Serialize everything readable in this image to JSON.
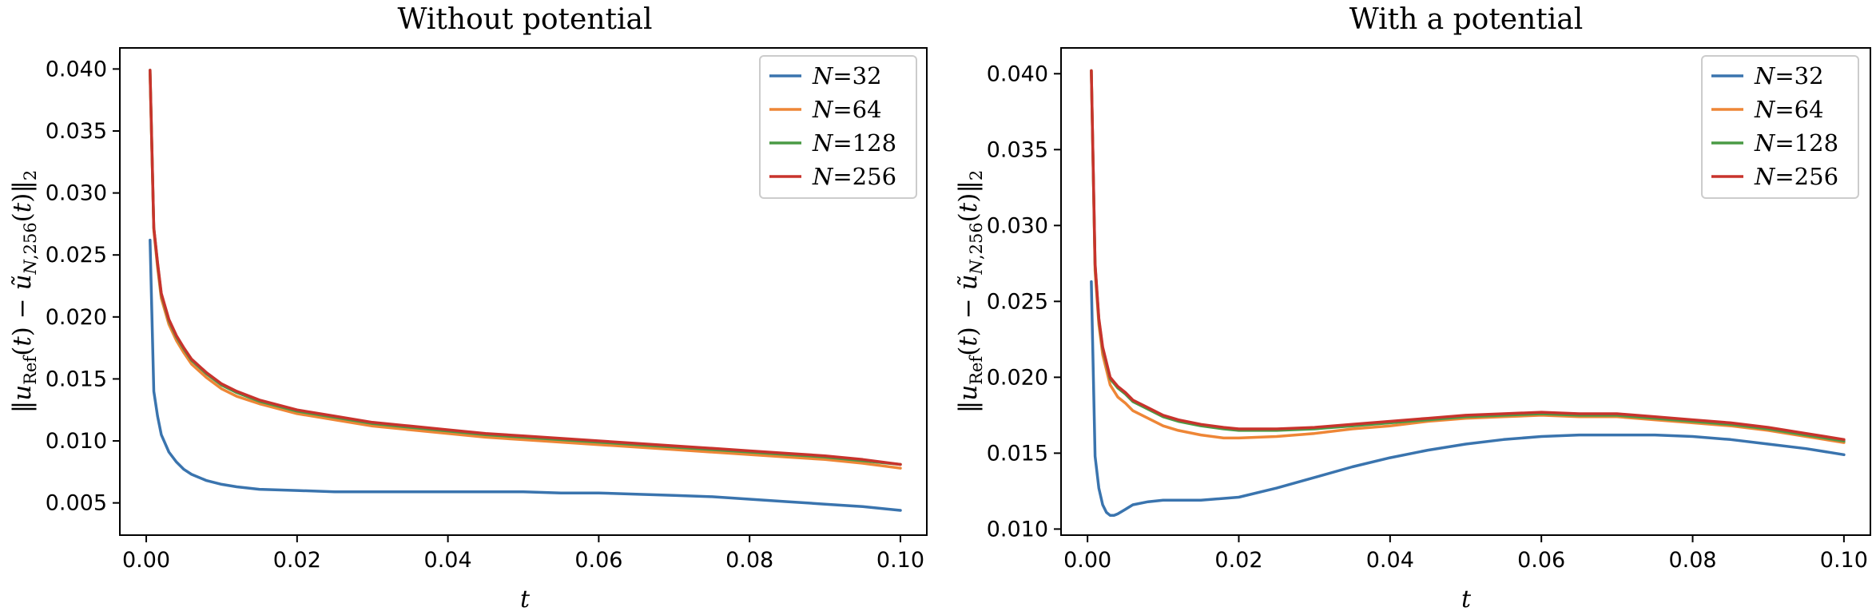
{
  "chart_data": [
    {
      "type": "line",
      "title": "Without potential",
      "xlabel": "t",
      "ylabel": "‖u_Ref(t) − ũ_N,256(t)‖_2",
      "xlim": [
        -0.0035,
        0.1035
      ],
      "ylim": [
        0.0024,
        0.0417
      ],
      "xticks": [
        "0.00",
        "0.02",
        "0.04",
        "0.06",
        "0.08",
        "0.10"
      ],
      "yticks": [
        "0.005",
        "0.010",
        "0.015",
        "0.020",
        "0.025",
        "0.030",
        "0.035",
        "0.040"
      ],
      "legend_position": "top-right",
      "series": [
        {
          "name": "N = 32",
          "color": "#3a74ae",
          "x": [
            0.0005,
            0.001,
            0.0015,
            0.002,
            0.003,
            0.004,
            0.005,
            0.006,
            0.008,
            0.01,
            0.012,
            0.015,
            0.02,
            0.025,
            0.03,
            0.035,
            0.04,
            0.045,
            0.05,
            0.055,
            0.06,
            0.065,
            0.07,
            0.075,
            0.08,
            0.085,
            0.09,
            0.095,
            0.1
          ],
          "values": [
            0.0262,
            0.014,
            0.012,
            0.0105,
            0.0091,
            0.0083,
            0.0077,
            0.0073,
            0.0068,
            0.0065,
            0.0063,
            0.0061,
            0.006,
            0.0059,
            0.0059,
            0.0059,
            0.0059,
            0.0059,
            0.0059,
            0.0058,
            0.0058,
            0.0057,
            0.0056,
            0.0055,
            0.0053,
            0.0051,
            0.0049,
            0.0047,
            0.0044
          ]
        },
        {
          "name": "N = 64",
          "color": "#ee8636",
          "x": [
            0.0005,
            0.001,
            0.0015,
            0.002,
            0.003,
            0.004,
            0.005,
            0.006,
            0.008,
            0.01,
            0.012,
            0.015,
            0.02,
            0.025,
            0.03,
            0.035,
            0.04,
            0.045,
            0.05,
            0.055,
            0.06,
            0.065,
            0.07,
            0.075,
            0.08,
            0.085,
            0.09,
            0.095,
            0.1
          ],
          "values": [
            0.0396,
            0.027,
            0.024,
            0.0215,
            0.0194,
            0.0181,
            0.0171,
            0.0162,
            0.0151,
            0.0142,
            0.0136,
            0.013,
            0.0122,
            0.0117,
            0.0112,
            0.0109,
            0.0106,
            0.0103,
            0.0101,
            0.0099,
            0.0097,
            0.0095,
            0.0093,
            0.0091,
            0.0089,
            0.0087,
            0.0085,
            0.0082,
            0.0078
          ]
        },
        {
          "name": "N = 128",
          "color": "#4a9a45",
          "x": [
            0.0005,
            0.001,
            0.0015,
            0.002,
            0.003,
            0.004,
            0.005,
            0.006,
            0.008,
            0.01,
            0.012,
            0.015,
            0.02,
            0.025,
            0.03,
            0.035,
            0.04,
            0.045,
            0.05,
            0.055,
            0.06,
            0.065,
            0.07,
            0.075,
            0.08,
            0.085,
            0.09,
            0.095,
            0.1
          ],
          "values": [
            0.0399,
            0.0272,
            0.0243,
            0.0218,
            0.0197,
            0.0184,
            0.0174,
            0.0165,
            0.0154,
            0.0145,
            0.0139,
            0.0132,
            0.0124,
            0.0119,
            0.0114,
            0.0111,
            0.0108,
            0.0105,
            0.0103,
            0.0101,
            0.0099,
            0.0097,
            0.0095,
            0.0093,
            0.0091,
            0.0089,
            0.0087,
            0.0084,
            0.0081
          ]
        },
        {
          "name": "N = 256",
          "color": "#c8332c",
          "x": [
            0.0005,
            0.001,
            0.0015,
            0.002,
            0.003,
            0.004,
            0.005,
            0.006,
            0.008,
            0.01,
            0.012,
            0.015,
            0.02,
            0.025,
            0.03,
            0.035,
            0.04,
            0.045,
            0.05,
            0.055,
            0.06,
            0.065,
            0.07,
            0.075,
            0.08,
            0.085,
            0.09,
            0.095,
            0.1
          ],
          "values": [
            0.0399,
            0.0272,
            0.0244,
            0.0219,
            0.0198,
            0.0185,
            0.0175,
            0.0166,
            0.0155,
            0.0146,
            0.014,
            0.0133,
            0.0125,
            0.012,
            0.0115,
            0.0112,
            0.0109,
            0.0106,
            0.0104,
            0.0102,
            0.01,
            0.0098,
            0.0096,
            0.0094,
            0.0092,
            0.009,
            0.0088,
            0.0085,
            0.0081
          ]
        }
      ]
    },
    {
      "type": "line",
      "title": "With a potential",
      "xlabel": "t",
      "ylabel": "‖u_Ref(t) − ũ_N,256(t)‖_2",
      "xlim": [
        -0.0035,
        0.1035
      ],
      "ylim": [
        0.0096,
        0.0417
      ],
      "xticks": [
        "0.00",
        "0.02",
        "0.04",
        "0.06",
        "0.08",
        "0.10"
      ],
      "yticks": [
        "0.010",
        "0.015",
        "0.020",
        "0.025",
        "0.030",
        "0.035",
        "0.040"
      ],
      "legend_position": "top-right",
      "series": [
        {
          "name": "N = 32",
          "color": "#3a74ae",
          "x": [
            0.0005,
            0.001,
            0.0015,
            0.002,
            0.0025,
            0.003,
            0.0035,
            0.004,
            0.005,
            0.006,
            0.008,
            0.01,
            0.015,
            0.02,
            0.025,
            0.03,
            0.035,
            0.04,
            0.045,
            0.05,
            0.055,
            0.06,
            0.065,
            0.07,
            0.075,
            0.08,
            0.085,
            0.09,
            0.095,
            0.1
          ],
          "values": [
            0.0263,
            0.0148,
            0.0127,
            0.0116,
            0.0111,
            0.0109,
            0.0109,
            0.011,
            0.0113,
            0.0116,
            0.0118,
            0.0119,
            0.0119,
            0.0121,
            0.0127,
            0.0134,
            0.0141,
            0.0147,
            0.0152,
            0.0156,
            0.0159,
            0.0161,
            0.0162,
            0.0162,
            0.0162,
            0.0161,
            0.0159,
            0.0156,
            0.0153,
            0.0149
          ]
        },
        {
          "name": "N = 64",
          "color": "#ee8636",
          "x": [
            0.0005,
            0.001,
            0.0015,
            0.002,
            0.003,
            0.004,
            0.005,
            0.006,
            0.008,
            0.01,
            0.012,
            0.015,
            0.018,
            0.02,
            0.025,
            0.03,
            0.035,
            0.04,
            0.045,
            0.05,
            0.055,
            0.06,
            0.065,
            0.07,
            0.075,
            0.08,
            0.085,
            0.09,
            0.095,
            0.1
          ],
          "values": [
            0.0402,
            0.027,
            0.0235,
            0.0215,
            0.0195,
            0.0187,
            0.0183,
            0.0178,
            0.0173,
            0.0168,
            0.0165,
            0.0162,
            0.016,
            0.016,
            0.0161,
            0.0163,
            0.0166,
            0.0168,
            0.0171,
            0.0173,
            0.0174,
            0.0175,
            0.0174,
            0.0174,
            0.0172,
            0.017,
            0.0168,
            0.0165,
            0.0161,
            0.0157
          ]
        },
        {
          "name": "N = 128",
          "color": "#4a9a45",
          "x": [
            0.0005,
            0.001,
            0.0015,
            0.002,
            0.003,
            0.004,
            0.005,
            0.006,
            0.008,
            0.01,
            0.012,
            0.015,
            0.018,
            0.02,
            0.025,
            0.03,
            0.035,
            0.04,
            0.045,
            0.05,
            0.055,
            0.06,
            0.065,
            0.07,
            0.075,
            0.08,
            0.085,
            0.09,
            0.095,
            0.1
          ],
          "values": [
            0.0402,
            0.0274,
            0.0238,
            0.0219,
            0.0199,
            0.0193,
            0.0189,
            0.0184,
            0.0179,
            0.0174,
            0.0171,
            0.0168,
            0.0166,
            0.0165,
            0.0165,
            0.0166,
            0.0168,
            0.017,
            0.0172,
            0.0174,
            0.0175,
            0.0176,
            0.0175,
            0.0175,
            0.0173,
            0.0171,
            0.0169,
            0.0166,
            0.0162,
            0.0158
          ]
        },
        {
          "name": "N = 256",
          "color": "#c8332c",
          "x": [
            0.0005,
            0.001,
            0.0015,
            0.002,
            0.003,
            0.004,
            0.005,
            0.006,
            0.008,
            0.01,
            0.012,
            0.015,
            0.018,
            0.02,
            0.025,
            0.03,
            0.035,
            0.04,
            0.045,
            0.05,
            0.055,
            0.06,
            0.065,
            0.07,
            0.075,
            0.08,
            0.085,
            0.09,
            0.095,
            0.1
          ],
          "values": [
            0.0402,
            0.0275,
            0.0239,
            0.022,
            0.02,
            0.0194,
            0.019,
            0.0185,
            0.018,
            0.0175,
            0.0172,
            0.0169,
            0.0167,
            0.0166,
            0.0166,
            0.0167,
            0.0169,
            0.0171,
            0.0173,
            0.0175,
            0.0176,
            0.0177,
            0.0176,
            0.0176,
            0.0174,
            0.0172,
            0.017,
            0.0167,
            0.0163,
            0.0159
          ]
        }
      ]
    }
  ]
}
